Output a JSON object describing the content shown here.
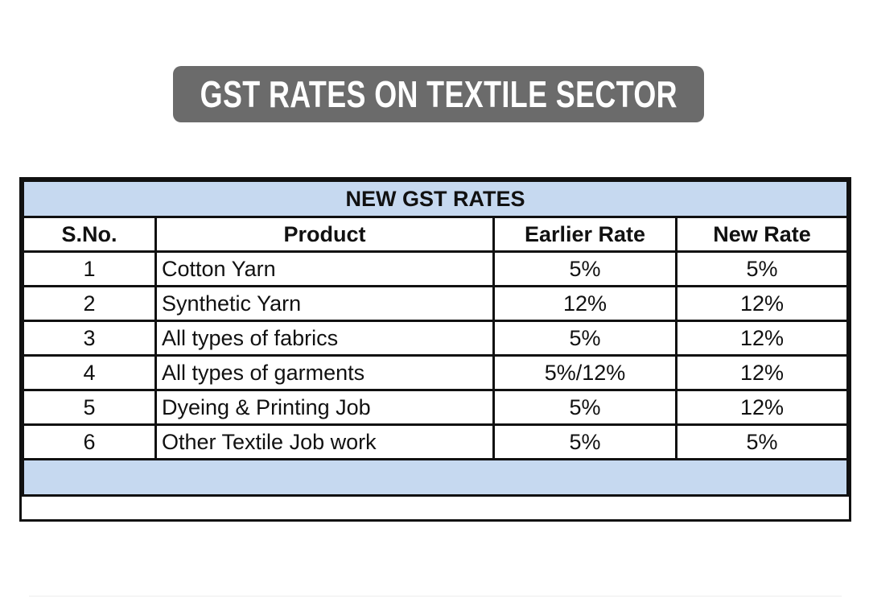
{
  "header": {
    "title": "GST RATES ON TEXTILE SECTOR"
  },
  "table": {
    "caption": "NEW GST RATES",
    "columns": [
      "S.No.",
      "Product",
      "Earlier Rate",
      "New Rate"
    ],
    "rows": [
      [
        1,
        "Cotton Yarn",
        "5%",
        "5%"
      ],
      [
        2,
        "Synthetic Yarn",
        "12%",
        "12%"
      ],
      [
        3,
        "All types of fabrics",
        "5%",
        "12%"
      ],
      [
        4,
        "All types of garments",
        "5%/12%",
        "12%"
      ],
      [
        5,
        "Dyeing & Printing Job",
        "5%",
        "12%"
      ],
      [
        6,
        "Other Textile Job work",
        "5%",
        "5%"
      ]
    ]
  }
}
